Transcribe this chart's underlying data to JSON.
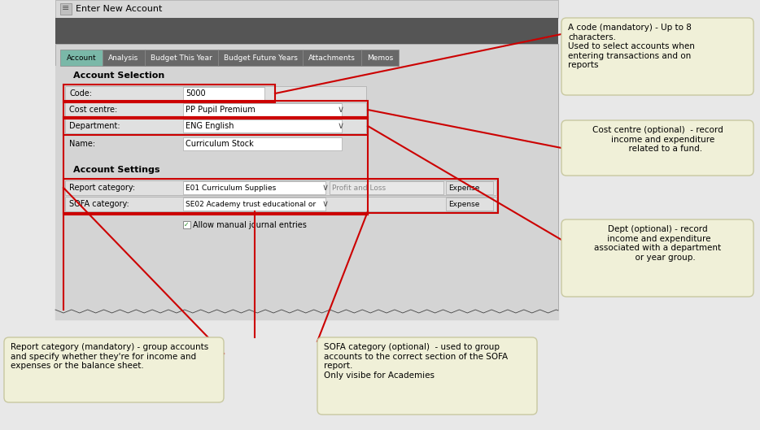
{
  "bg_color": "#e8e8e8",
  "window_title_bar": "#e0e0e0",
  "dark_bar": "#505050",
  "tab_active_bg": "#7ab8a8",
  "tab_inactive_bg": "#686868",
  "tab_text_active": "#000000",
  "tab_text_inactive": "#ffffff",
  "form_bg": "#d0d0d0",
  "field_bg": "#ffffff",
  "field_row_bg": "#e8e8e8",
  "red": "#cc0000",
  "callout_bg": "#f0f0d8",
  "callout_border": "#c8c8a0",
  "title": "Enter New Account",
  "tabs": [
    "Account",
    "Analysis",
    "Budget This Year",
    "Budget Future Years",
    "Attachments",
    "Memos"
  ],
  "tab_widths": [
    52,
    52,
    90,
    104,
    72,
    46
  ],
  "code_label": "Code:",
  "code_value": "5000",
  "cost_centre_label": "Cost centre:",
  "cost_centre_value": "PP Pupil Premium",
  "dept_label": "Department:",
  "dept_value": "ENG English",
  "name_label": "Name:",
  "name_value": "Curriculum Stock",
  "account_selection_label": "Account Selection",
  "account_settings_label": "Account Settings",
  "report_cat_label": "Report category:",
  "report_cat_value": "E01 Curriculum Supplies",
  "report_cat_type": "Profit and Loss",
  "report_cat_tag": "Expense",
  "sofa_cat_label": "SOFA category:",
  "sofa_cat_value": "SE02 Academy trust educational or",
  "sofa_cat_tag": "Expense",
  "checkbox_label": "Allow manual journal entries",
  "callout1_text": "A code (mandatory) - Up to 8\ncharacters.\nUsed to select accounts when\nentering transactions and on\nreports",
  "callout2_text": "Cost centre (optional)  - record\n    income and expenditure\n      related to a fund.",
  "callout3_text": "Dept (optional) - record\n income and expenditure\nassociated with a department\n      or year group.",
  "callout4_text": "Report category (mandatory) - group accounts\nand specify whether they're for income and\nexpenses or the balance sheet.",
  "callout5_text": "SOFA category (optional)  - used to group\naccounts to the correct section of the SOFA\nreport.\nOnly visibe for Academies"
}
